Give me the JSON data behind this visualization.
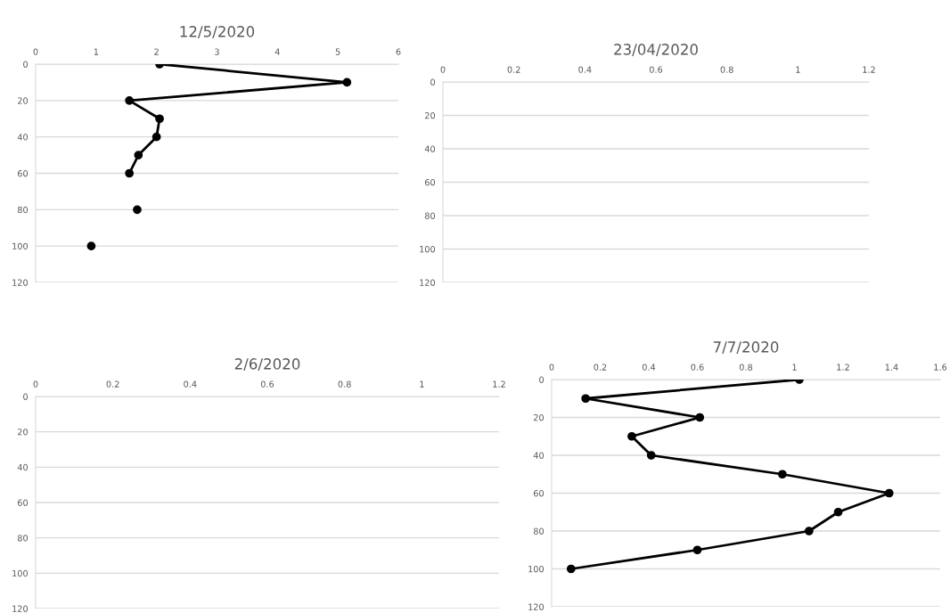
{
  "chart_data": [
    {
      "type": "line",
      "title": "12/5/2020",
      "marker": "circle",
      "grid": "y",
      "xlim": [
        0,
        6
      ],
      "xticks": [
        0,
        1,
        2,
        3,
        4,
        5,
        6
      ],
      "ylim": [
        120,
        0
      ],
      "yticks": [
        0,
        20,
        40,
        60,
        80,
        100,
        120
      ],
      "series": [
        {
          "color": "#000000",
          "x": [
            2.05,
            5.15,
            1.55,
            2.05,
            2.0,
            1.7,
            1.55
          ],
          "values": [
            0,
            10,
            20,
            30,
            40,
            50,
            60
          ]
        },
        {
          "type": "scatter",
          "color": "#000000",
          "x": [
            1.68,
            0.92
          ],
          "values": [
            80,
            100
          ]
        }
      ]
    },
    {
      "type": "line",
      "title": "23/04/2020",
      "grid": "y",
      "xlim": [
        0,
        1.2
      ],
      "xticks": [
        0,
        0.2,
        0.4,
        0.6,
        0.8,
        1,
        1.2
      ],
      "ylim": [
        120,
        0
      ],
      "yticks": [
        0,
        20,
        40,
        60,
        80,
        100,
        120
      ]
    },
    {
      "type": "line",
      "title": "7/7/2020",
      "marker": "circle",
      "grid": "y",
      "xlim": [
        0,
        1.6
      ],
      "xticks": [
        0,
        0.2,
        0.4,
        0.6,
        0.8,
        1,
        1.2,
        1.4,
        1.6
      ],
      "ylim": [
        120,
        0
      ],
      "yticks": [
        0,
        20,
        40,
        60,
        80,
        100,
        120
      ],
      "series": [
        {
          "color": "#000000",
          "x": [
            1.02,
            0.14,
            0.61,
            0.33,
            0.41,
            0.95,
            1.39,
            1.18,
            1.06,
            0.6,
            0.08
          ],
          "values": [
            0,
            10,
            20,
            30,
            40,
            50,
            60,
            70,
            80,
            90,
            100
          ]
        }
      ]
    },
    {
      "type": "line",
      "title": "2/6/2020",
      "grid": "y",
      "xlim": [
        0,
        1.2
      ],
      "xticks": [
        0,
        0.2,
        0.4,
        0.6,
        0.8,
        1,
        1.2
      ],
      "ylim": [
        120,
        0
      ],
      "yticks": [
        0,
        20,
        40,
        60,
        80,
        100,
        120
      ]
    }
  ]
}
